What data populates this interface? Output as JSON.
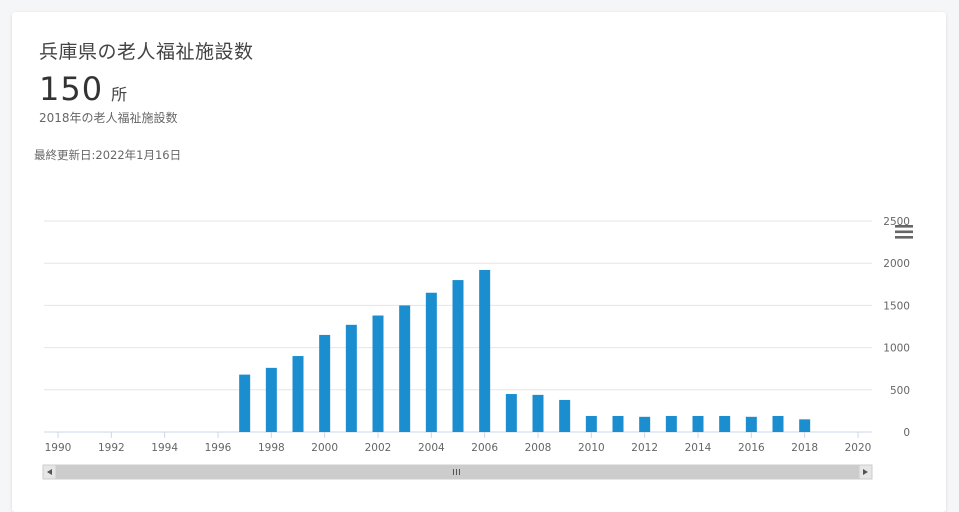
{
  "card": {
    "title": "兵庫県の老人福祉施設数",
    "value": "150",
    "unit": "所",
    "subtitle": "2018年の老人福祉施設数",
    "updated": "最終更新日:2022年1月16日"
  },
  "colors": {
    "bar": "#1b8ecf",
    "grid": "#e6e6e6",
    "axis_text": "#666666",
    "scrollbar": "#cccccc"
  },
  "icons": {
    "menu": "hamburger-menu-icon",
    "scroll_left": "triangle-left-icon",
    "scroll_right": "triangle-right-icon",
    "scroll_grip": "grip-icon"
  },
  "chart_data": {
    "type": "bar",
    "x": [
      1997,
      1998,
      1999,
      2000,
      2001,
      2002,
      2003,
      2004,
      2005,
      2006,
      2007,
      2008,
      2009,
      2010,
      2011,
      2012,
      2013,
      2014,
      2015,
      2016,
      2017,
      2018
    ],
    "values": [
      680,
      760,
      900,
      1150,
      1270,
      1380,
      1500,
      1650,
      1800,
      1920,
      450,
      440,
      380,
      190,
      190,
      180,
      190,
      190,
      190,
      180,
      190,
      150
    ],
    "xlim": [
      1990,
      2020
    ],
    "x_ticks": [
      "1990",
      "1992",
      "1994",
      "1996",
      "1998",
      "2000",
      "2002",
      "2004",
      "2006",
      "2008",
      "2010",
      "2012",
      "2014",
      "2016",
      "2018",
      "2020"
    ],
    "ylim": [
      0,
      2500
    ],
    "y_ticks": [
      "0",
      "500",
      "1000",
      "1500",
      "2000",
      "2500"
    ],
    "grid": true,
    "y_axis_side": "right",
    "legend": "none"
  }
}
